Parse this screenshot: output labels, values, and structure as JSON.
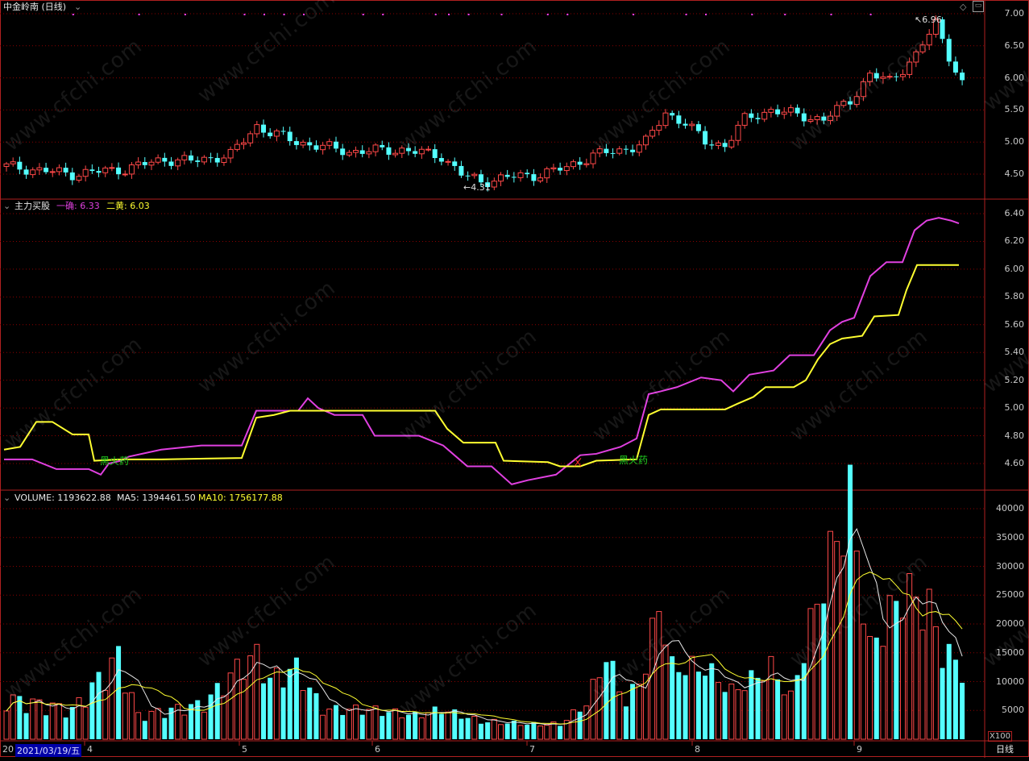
{
  "window": {
    "title": "中金岭南 (日线)",
    "top_right_icons": [
      "diamond-icon",
      "minimize-icon"
    ]
  },
  "price_panel": {
    "high_label": "6.96",
    "low_label": "4.31",
    "y_axis": [
      "7.00",
      "6.50",
      "6.00",
      "5.50",
      "5.00",
      "4.50"
    ]
  },
  "indicator_panel": {
    "name": "主力买股",
    "line1": {
      "label": "一确: 6.33",
      "color": "#e040e0"
    },
    "line2": {
      "label": "二黄: 6.03",
      "color": "#ffff30"
    },
    "signal_text": [
      "黑火药",
      "黑火药"
    ],
    "y_axis": [
      "6.40",
      "6.20",
      "6.00",
      "5.80",
      "5.60",
      "5.40",
      "5.20",
      "5.00",
      "4.80",
      "4.60"
    ]
  },
  "volume_panel": {
    "volume_label": "VOLUME: 1193622.88",
    "ma5_label": "MA5: 1394461.50",
    "ma10_label": "MA10: 1756177.88",
    "y_axis": [
      "40000",
      "35000",
      "30000",
      "25000",
      "20000",
      "15000",
      "10000",
      "5000"
    ],
    "unit": "X100"
  },
  "time_axis": {
    "cursor_date": "2021/03/19/五",
    "months": [
      "4",
      "5",
      "6",
      "7",
      "8",
      "9"
    ],
    "period": "日线",
    "left_stub": "20"
  },
  "watermark": "www.cfchi.com",
  "colors": {
    "up": "#ff4848",
    "down": "#54ffff",
    "grid": "#8b0000",
    "border": "#b02020"
  }
}
